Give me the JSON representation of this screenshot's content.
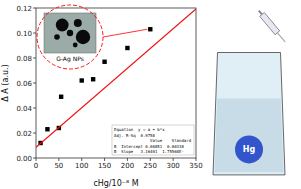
{
  "chart_data": {
    "type": "scatter",
    "xlabel": "cHg/10⁻⁸ M",
    "ylabel": "Δ A (a.u.)",
    "series": [
      {
        "type": "scatter",
        "color": "black",
        "marker": "square",
        "x": [
          10,
          25,
          50,
          55,
          100,
          125,
          150,
          200,
          250
        ],
        "values": [
          0.012,
          0.023,
          0.024,
          0.049,
          0.062,
          0.063,
          0.077,
          0.088,
          0.103
        ]
      },
      {
        "type": "line",
        "color": "#ee1111",
        "line_style": "solid",
        "x": [
          0,
          350
        ],
        "values": [
          0.00851,
          0.11925035
        ]
      }
    ],
    "xlim": [
      0,
      350
    ],
    "ylim": [
      0,
      0.12
    ],
    "xticks": [
      0,
      50,
      100,
      150,
      200,
      250,
      300,
      350
    ],
    "yticks": [
      {
        "value": 0.0,
        "label": "0.00"
      },
      {
        "value": 0.02,
        "label": "0.02"
      },
      {
        "value": 0.04,
        "label": "0.04"
      },
      {
        "value": 0.06,
        "label": "0.06"
      },
      {
        "value": 0.08,
        "label": "0.08"
      },
      {
        "value": 0.1,
        "label": "0.10"
      },
      {
        "value": 0.12,
        "label": "0.12"
      }
    ],
    "annotations": [
      "Equation  y = a + b*x",
      "Adj. R-Sq  0.9758",
      "               Value    Standard",
      "B  Intercept 0.00851  0.00338",
      "B  Slope   3.16401  1.75568E-",
      "G-Ag NPs",
      "Hg"
    ]
  }
}
